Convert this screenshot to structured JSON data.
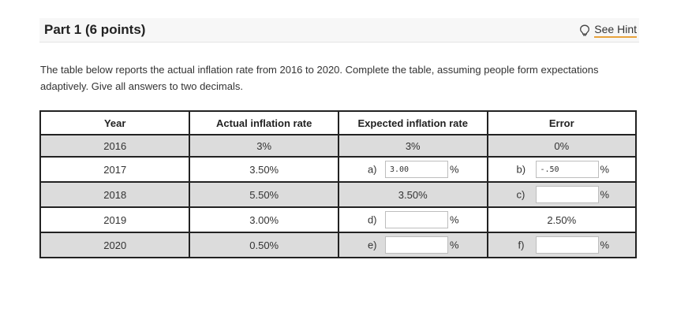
{
  "header": {
    "title": "Part 1   (6 points)",
    "hint_label": "See Hint",
    "hint_icon": "lightbulb-icon"
  },
  "intro": "The table below reports the actual inflation rate from 2016 to 2020. Complete the table, assuming people form expectations adaptively. Give all answers to two decimals.",
  "table": {
    "headers": [
      "Year",
      "Actual inflation rate",
      "Expected inflation rate",
      "Error"
    ],
    "rows": [
      {
        "year": "2016",
        "actual": "3%",
        "expected_text": "3%",
        "error_text": "0%"
      },
      {
        "year": "2017",
        "actual": "3.50%",
        "expected_label": "a)",
        "expected_value": "3.00",
        "expected_unit": "%",
        "error_label": "b)",
        "error_value": "-.50",
        "error_unit": "%"
      },
      {
        "year": "2018",
        "actual": "5.50%",
        "expected_text": "3.50%",
        "error_label": "c)",
        "error_value": "",
        "error_unit": "%"
      },
      {
        "year": "2019",
        "actual": "3.00%",
        "expected_label": "d)",
        "expected_value": "",
        "expected_unit": "%",
        "error_text": "2.50%"
      },
      {
        "year": "2020",
        "actual": "0.50%",
        "expected_label": "e)",
        "expected_value": "",
        "expected_unit": "%",
        "error_label": "f)",
        "error_value": "",
        "error_unit": "%"
      }
    ]
  },
  "colors": {
    "accent_underline": "#e8a33c",
    "shaded_row": "#dcdcdc",
    "border": "#222222"
  }
}
